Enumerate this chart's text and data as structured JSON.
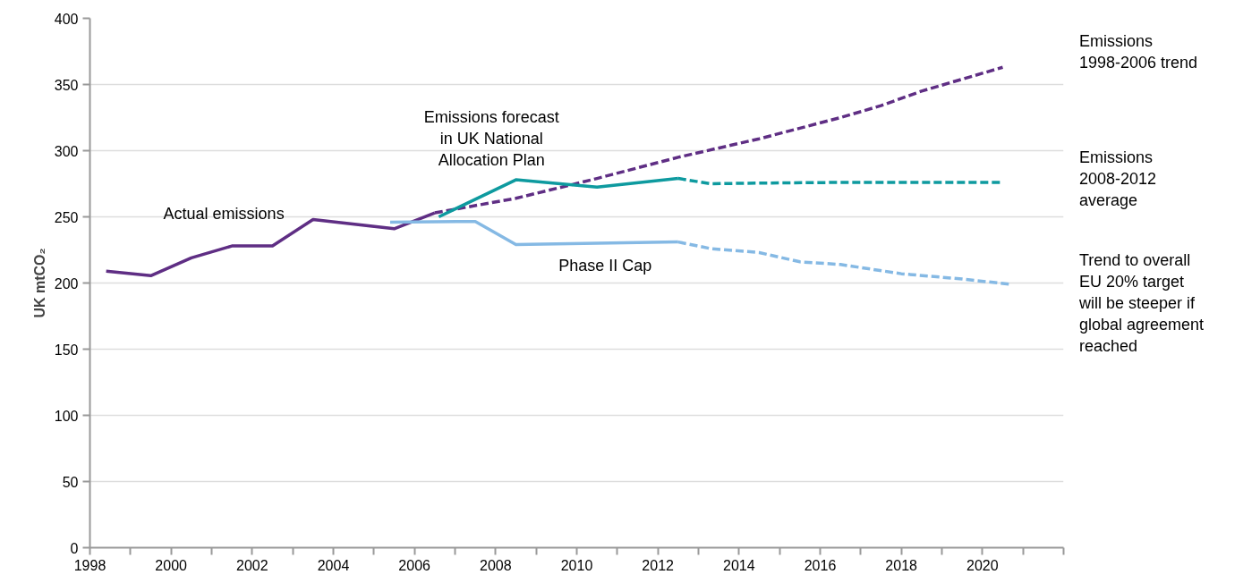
{
  "chart_data": {
    "type": "line",
    "ylabel": "UK mtCO₂",
    "xlim": [
      1998,
      2022
    ],
    "ylim": [
      0,
      400
    ],
    "xticks": [
      1998,
      {
        "value": 1999,
        "label": null
      },
      2000,
      {
        "value": 2001,
        "label": null
      },
      2002,
      {
        "value": 2003,
        "label": null
      },
      2004,
      {
        "value": 2005,
        "label": null
      },
      2006,
      {
        "value": 2007,
        "label": null
      },
      2008,
      {
        "value": 2009,
        "label": null
      },
      2010,
      {
        "value": 2011,
        "label": null
      },
      2012,
      {
        "value": 2013,
        "label": null
      },
      2014,
      {
        "value": 2015,
        "label": null
      },
      2016,
      {
        "value": 2017,
        "label": null
      },
      2018,
      {
        "value": 2019,
        "label": null
      },
      2020,
      {
        "value": 2021,
        "label": null
      },
      {
        "value": 2022,
        "label": null
      }
    ],
    "yticks": [
      0,
      50,
      100,
      150,
      200,
      250,
      300,
      350,
      400
    ],
    "grid": "y",
    "series": [
      {
        "color": "#5f2e84",
        "line_style": "solid",
        "x": [
          1998.4,
          1999.5,
          2000.5,
          2001.5,
          2002.5,
          2003.5,
          2005.5,
          2006.5
        ],
        "values": [
          209,
          205.5,
          219,
          228,
          228,
          248,
          241,
          253
        ]
      },
      {
        "color": "#5f2e84",
        "line_style": "dashed",
        "x": [
          2006.5,
          2008.5,
          2010.5,
          2012.5,
          2014.5,
          2016.5,
          2017.5,
          2018.5,
          2020.5
        ],
        "values": [
          253,
          264,
          279,
          295,
          309,
          325,
          334,
          345,
          363
        ]
      },
      {
        "color": "#0e9a9f",
        "line_style": "solid",
        "x": [
          2006.6,
          2008.5,
          2010.5,
          2012.5
        ],
        "values": [
          250,
          278,
          272.5,
          279
        ]
      },
      {
        "color": "#0e9a9f",
        "line_style": "dashed",
        "x": [
          2012.5,
          2013.3,
          2014.5,
          2016.5,
          2018.5,
          2020.5
        ],
        "values": [
          279,
          275,
          275.5,
          276,
          276,
          276
        ]
      },
      {
        "color": "#85b9e4",
        "line_style": "solid",
        "x": [
          2005.4,
          2007.5,
          2008.5,
          2012.5
        ],
        "values": [
          246,
          246.5,
          229,
          231
        ]
      },
      {
        "color": "#85b9e4",
        "line_style": "dashed",
        "x": [
          2012.5,
          2013.3,
          2014.5,
          2015.5,
          2016.5,
          2018,
          2019.5,
          2020.7
        ],
        "values": [
          231,
          226,
          223,
          216,
          214,
          207,
          203,
          199
        ]
      }
    ],
    "annotations": [
      "Actual emissions",
      "Emissions forecast\nin UK National\nAllocation Plan",
      "Phase II Cap",
      "Emissions\n1998-2006 trend",
      "Emissions\n2008-2012\naverage",
      "Trend to overall\nEU 20% target\nwill be steeper if\nglobal agreement\nreached"
    ]
  }
}
